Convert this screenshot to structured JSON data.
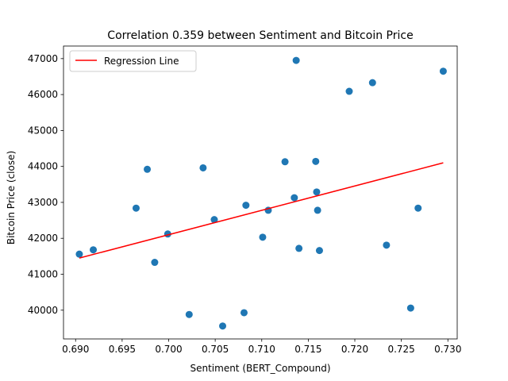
{
  "chart_data": {
    "type": "scatter",
    "title": "Correlation 0.359 between Sentiment and Bitcoin Price",
    "xlabel": "Sentiment (BERT_Compound)",
    "ylabel": "Bitcoin Price (close)",
    "xlim": [
      0.6887,
      0.731
    ],
    "ylim": [
      39200,
      47350
    ],
    "xticks": [
      0.69,
      0.695,
      0.7,
      0.705,
      0.71,
      0.715,
      0.72,
      0.725,
      0.73
    ],
    "xtick_labels": [
      "0.690",
      "0.695",
      "0.700",
      "0.705",
      "0.710",
      "0.715",
      "0.720",
      "0.725",
      "0.730"
    ],
    "yticks": [
      40000,
      41000,
      42000,
      43000,
      44000,
      45000,
      46000,
      47000
    ],
    "ytick_labels": [
      "40000",
      "41000",
      "42000",
      "43000",
      "44000",
      "45000",
      "46000",
      "47000"
    ],
    "grid": false,
    "legend_position": "top-left",
    "point_color": "#1f77b4",
    "line_color": "#ff0000",
    "points": {
      "x": [
        0.6904,
        0.6919,
        0.6965,
        0.6977,
        0.6985,
        0.6999,
        0.7022,
        0.7037,
        0.7049,
        0.7058,
        0.7081,
        0.7083,
        0.7107,
        0.7101,
        0.7125,
        0.7135,
        0.7137,
        0.714,
        0.7158,
        0.7159,
        0.716,
        0.7162,
        0.7194,
        0.7219,
        0.7234,
        0.726,
        0.7268,
        0.7295
      ],
      "y": [
        41560,
        41680,
        42840,
        43920,
        41330,
        42120,
        39880,
        43960,
        42520,
        39560,
        39930,
        42920,
        42780,
        42030,
        44130,
        43130,
        46950,
        41720,
        44140,
        43290,
        42780,
        41660,
        46090,
        46330,
        41810,
        40060,
        42840,
        46650
      ]
    },
    "series": [
      {
        "name": "Regression Line",
        "type": "line",
        "x": [
          0.6904,
          0.7295
        ],
        "y": [
          41450,
          44100
        ]
      }
    ]
  }
}
